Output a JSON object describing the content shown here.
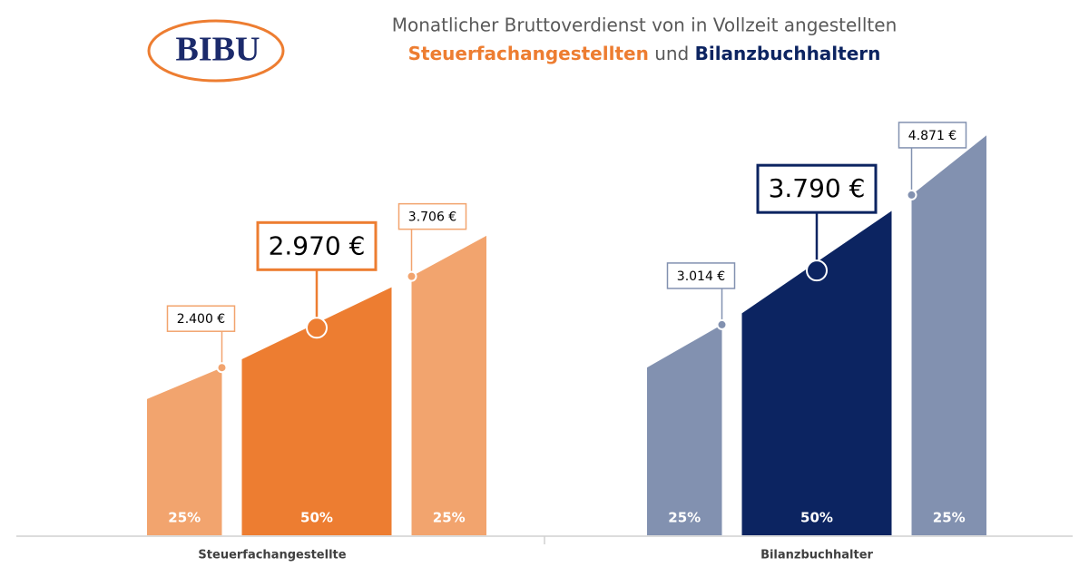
{
  "logo": "BIBU",
  "chart_data": {
    "type": "bar",
    "title": "Monatlicher Bruttoverdienst von in Vollzeit angestellten",
    "subtitle_parts": [
      "Steuerfachangestellten",
      "und",
      "Bilanzbuchhaltern"
    ],
    "groups": [
      {
        "name": "Steuerfachangestellte",
        "colors": [
          "#f2a46e",
          "#ed7d31",
          "#f2a46e"
        ],
        "values": [
          2400,
          2970,
          3706
        ],
        "value_labels": [
          "2.400 €",
          "2.970 €",
          "3.706 €"
        ],
        "shares": [
          25,
          50,
          25
        ],
        "share_labels": [
          "25%",
          "50%",
          "25%"
        ]
      },
      {
        "name": "Bilanzbuchhalter",
        "colors": [
          "#8291b0",
          "#0c2461",
          "#8291b0"
        ],
        "values": [
          3014,
          3790,
          4871
        ],
        "value_labels": [
          "3.014 €",
          "3.790 €",
          "4.871 €"
        ],
        "shares": [
          25,
          50,
          25
        ],
        "share_labels": [
          "25%",
          "50%",
          "25%"
        ]
      }
    ]
  }
}
